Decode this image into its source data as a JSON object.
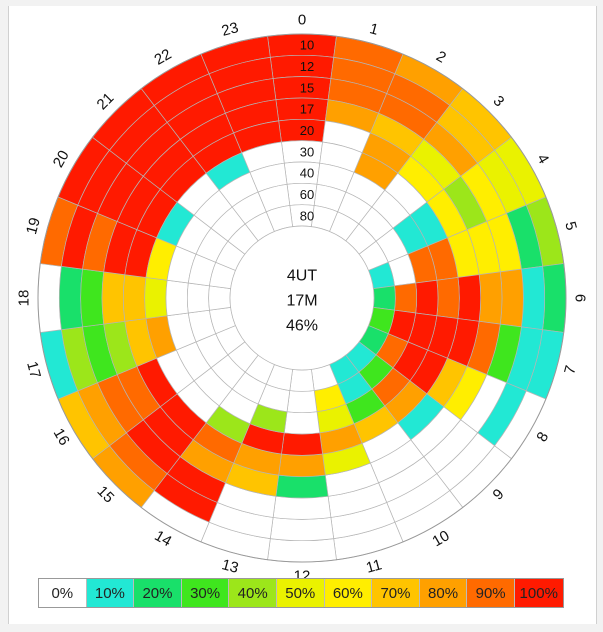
{
  "chart_data": {
    "type": "heatmap",
    "projection": "polar",
    "center_labels": [
      "4UT",
      "17M",
      "46%"
    ],
    "sectors": [
      "0",
      "1",
      "2",
      "3",
      "4",
      "5",
      "6",
      "7",
      "8",
      "9",
      "10",
      "11",
      "12",
      "13",
      "14",
      "15",
      "16",
      "17",
      "18",
      "19",
      "20",
      "21",
      "22",
      "23"
    ],
    "rings": [
      "10",
      "12",
      "15",
      "17",
      "20",
      "30",
      "40",
      "60",
      "80"
    ],
    "legend": [
      {
        "label": "0%",
        "color": "#ffffff"
      },
      {
        "label": "10%",
        "color": "#22e8d4"
      },
      {
        "label": "20%",
        "color": "#19e06a"
      },
      {
        "label": "30%",
        "color": "#3fe61e"
      },
      {
        "label": "40%",
        "color": "#9ce61a"
      },
      {
        "label": "50%",
        "color": "#eaf200"
      },
      {
        "label": "60%",
        "color": "#ffee00"
      },
      {
        "label": "70%",
        "color": "#ffc400"
      },
      {
        "label": "80%",
        "color": "#ffa000"
      },
      {
        "label": "90%",
        "color": "#ff6a00"
      },
      {
        "label": "100%",
        "color": "#ff1a00"
      }
    ],
    "values_percent": [
      [
        100,
        90,
        80,
        70,
        50,
        40,
        20,
        10,
        0,
        0,
        0,
        0,
        0,
        0,
        0,
        80,
        70,
        10,
        0,
        90,
        100,
        100,
        100,
        100
      ],
      [
        100,
        90,
        90,
        70,
        50,
        20,
        10,
        10,
        10,
        0,
        0,
        0,
        0,
        0,
        100,
        90,
        80,
        40,
        20,
        100,
        100,
        100,
        100,
        100
      ],
      [
        100,
        90,
        90,
        80,
        60,
        60,
        80,
        30,
        0,
        0,
        0,
        0,
        0,
        0,
        100,
        100,
        90,
        30,
        30,
        90,
        100,
        100,
        100,
        100
      ],
      [
        100,
        80,
        70,
        50,
        40,
        60,
        80,
        90,
        60,
        0,
        0,
        0,
        20,
        70,
        80,
        100,
        90,
        40,
        70,
        100,
        100,
        100,
        100,
        100
      ],
      [
        100,
        0,
        80,
        60,
        60,
        60,
        100,
        100,
        70,
        10,
        0,
        50,
        80,
        80,
        90,
        100,
        100,
        70,
        70,
        100,
        100,
        100,
        100,
        100
      ],
      [
        0,
        0,
        80,
        0,
        10,
        90,
        90,
        100,
        100,
        80,
        70,
        80,
        100,
        100,
        40,
        0,
        0,
        80,
        50,
        60,
        10,
        0,
        10,
        0
      ],
      [
        0,
        0,
        0,
        0,
        10,
        90,
        100,
        100,
        100,
        90,
        30,
        50,
        0,
        40,
        0,
        0,
        0,
        0,
        0,
        0,
        0,
        0,
        0,
        0
      ],
      [
        0,
        0,
        0,
        0,
        0,
        0,
        90,
        100,
        90,
        30,
        10,
        60,
        0,
        0,
        0,
        0,
        0,
        0,
        0,
        0,
        0,
        0,
        0,
        0
      ],
      [
        0,
        0,
        0,
        0,
        0,
        10,
        20,
        30,
        20,
        10,
        10,
        0,
        0,
        0,
        0,
        0,
        0,
        0,
        0,
        0,
        0,
        0,
        0,
        0
      ]
    ]
  }
}
